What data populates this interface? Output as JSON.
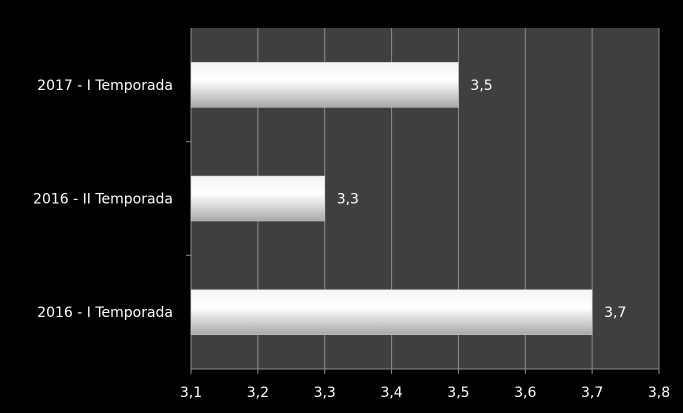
{
  "chart_data": {
    "type": "bar",
    "orientation": "horizontal",
    "categories": [
      "2017 - I Temporada",
      "2016 - II Temporada",
      "2016 - I Temporada"
    ],
    "values": [
      3.5,
      3.3,
      3.7
    ],
    "value_labels": [
      "3,5",
      "3,3",
      "3,7"
    ],
    "xlim": [
      3.1,
      3.8
    ],
    "x_ticks": [
      3.1,
      3.2,
      3.3,
      3.4,
      3.5,
      3.6,
      3.7,
      3.8
    ],
    "x_tick_labels": [
      "3,1",
      "3,2",
      "3,3",
      "3,4",
      "3,5",
      "3,6",
      "3,7",
      "3,8"
    ],
    "grid": true,
    "legend": "none",
    "colors": {
      "background": "#000000",
      "plot_area": "#3f3f3f",
      "gridline": "#8c8c8c",
      "bar_light": "#ffffff",
      "bar_dark": "#a8a8a8",
      "text": "#ffffff"
    }
  }
}
